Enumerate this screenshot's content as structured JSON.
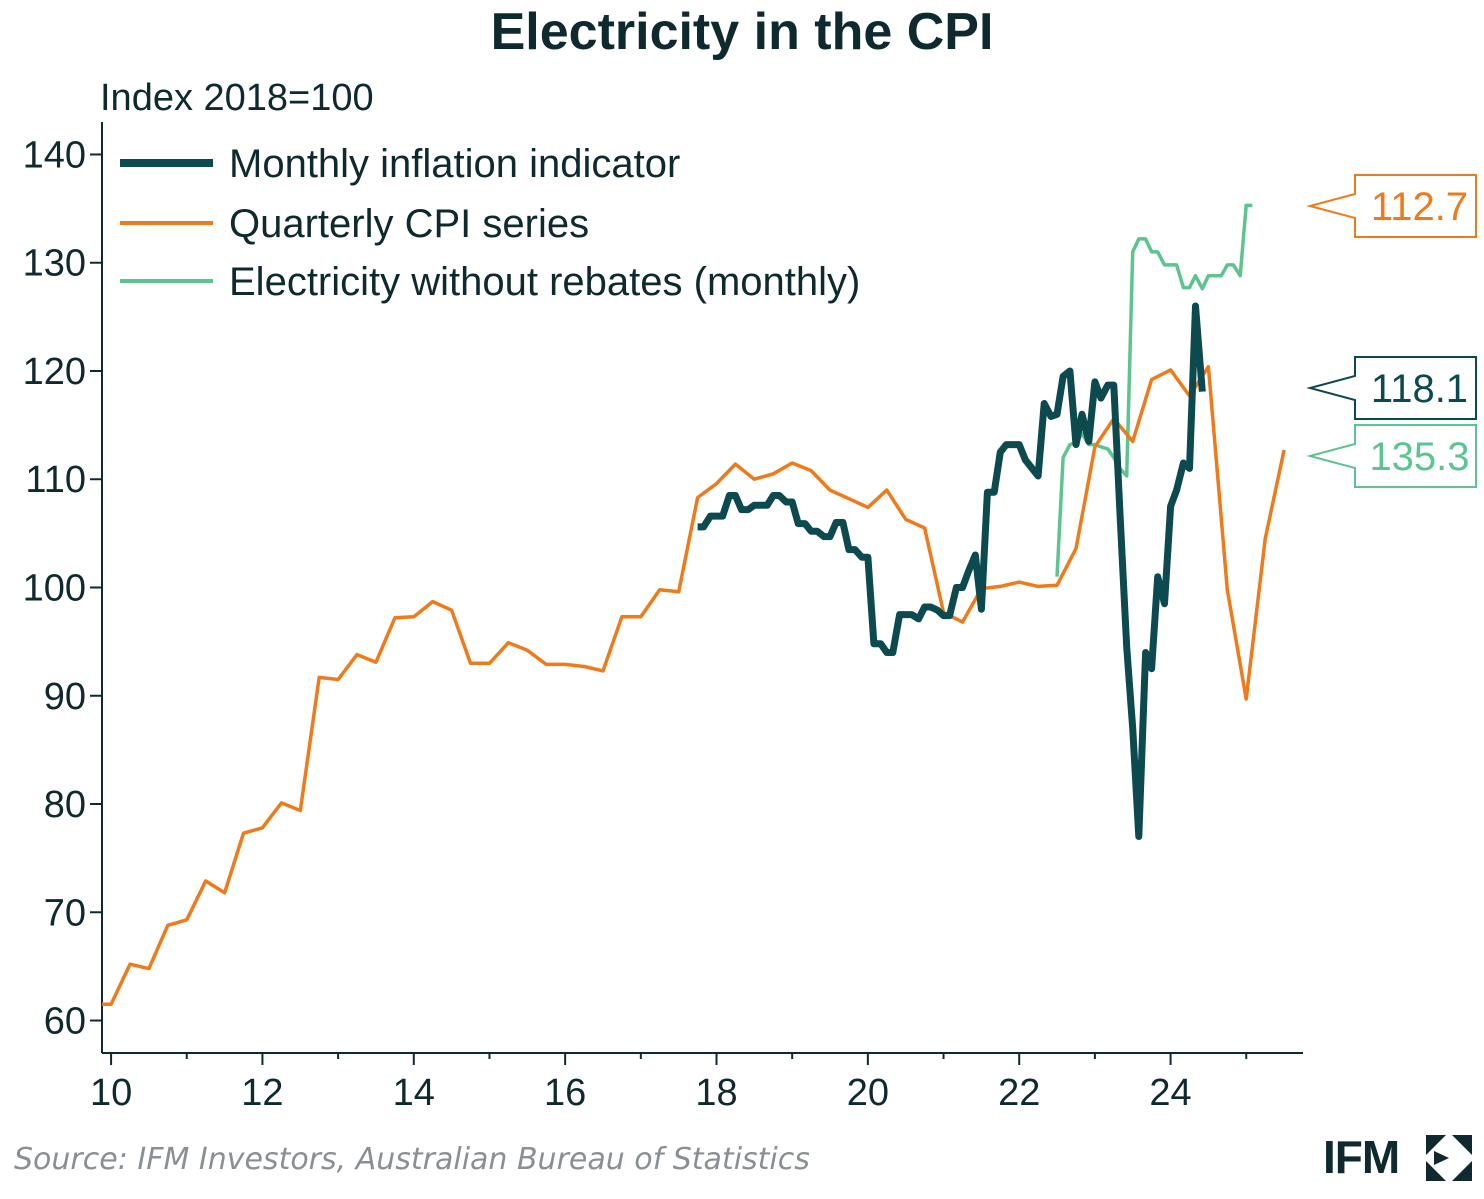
{
  "brand": {
    "name": "IFM",
    "logo_icon": "ifm-logo-mark-icon"
  },
  "source": "Source: IFM Investors, Australian Bureau of Statistics",
  "chart_data": {
    "type": "line",
    "title": "Electricity in the CPI",
    "ylabel": "Index 2018=100",
    "xlabel": "",
    "xlim": [
      2009.88,
      2025.75
    ],
    "ylim": [
      57,
      143
    ],
    "y_ticks": [
      60,
      70,
      80,
      90,
      100,
      110,
      120,
      130,
      140
    ],
    "x_ticks": [
      {
        "value": 2010,
        "label": "10"
      },
      {
        "value": 2012,
        "label": "12"
      },
      {
        "value": 2014,
        "label": "14"
      },
      {
        "value": 2016,
        "label": "16"
      },
      {
        "value": 2018,
        "label": "18"
      },
      {
        "value": 2020,
        "label": "20"
      },
      {
        "value": 2022,
        "label": "22"
      },
      {
        "value": 2024,
        "label": "24"
      }
    ],
    "legend_position": "top-left",
    "series": [
      {
        "name": "Monthly inflation indicator",
        "color": "#0d4a50",
        "end_label": "118.1",
        "points": [
          [
            2017.75,
            105.6
          ],
          [
            2017.83,
            105.6
          ],
          [
            2017.92,
            106.6
          ],
          [
            2018.0,
            106.6
          ],
          [
            2018.08,
            106.6
          ],
          [
            2018.17,
            108.5
          ],
          [
            2018.25,
            108.5
          ],
          [
            2018.33,
            107.2
          ],
          [
            2018.42,
            107.2
          ],
          [
            2018.5,
            107.6
          ],
          [
            2018.58,
            107.6
          ],
          [
            2018.67,
            107.6
          ],
          [
            2018.75,
            108.5
          ],
          [
            2018.83,
            108.5
          ],
          [
            2018.92,
            107.9
          ],
          [
            2019.0,
            107.9
          ],
          [
            2019.08,
            105.9
          ],
          [
            2019.17,
            105.9
          ],
          [
            2019.25,
            105.2
          ],
          [
            2019.33,
            105.2
          ],
          [
            2019.42,
            104.7
          ],
          [
            2019.5,
            104.7
          ],
          [
            2019.58,
            106.0
          ],
          [
            2019.67,
            106.0
          ],
          [
            2019.75,
            103.5
          ],
          [
            2019.83,
            103.5
          ],
          [
            2019.92,
            102.8
          ],
          [
            2020.0,
            102.8
          ],
          [
            2020.08,
            94.8
          ],
          [
            2020.17,
            94.8
          ],
          [
            2020.25,
            94.0
          ],
          [
            2020.33,
            94.0
          ],
          [
            2020.42,
            97.5
          ],
          [
            2020.5,
            97.5
          ],
          [
            2020.58,
            97.5
          ],
          [
            2020.67,
            97.1
          ],
          [
            2020.75,
            98.2
          ],
          [
            2020.83,
            98.2
          ],
          [
            2020.92,
            97.9
          ],
          [
            2021.0,
            97.4
          ],
          [
            2021.08,
            97.4
          ],
          [
            2021.17,
            100.0
          ],
          [
            2021.25,
            100.0
          ],
          [
            2021.33,
            101.5
          ],
          [
            2021.42,
            103.0
          ],
          [
            2021.5,
            98.0
          ],
          [
            2021.58,
            108.8
          ],
          [
            2021.67,
            108.8
          ],
          [
            2021.75,
            112.5
          ],
          [
            2021.83,
            113.2
          ],
          [
            2021.92,
            113.2
          ],
          [
            2022.0,
            113.2
          ],
          [
            2022.08,
            111.8
          ],
          [
            2022.17,
            111.0
          ],
          [
            2022.25,
            110.3
          ],
          [
            2022.33,
            117.0
          ],
          [
            2022.42,
            115.8
          ],
          [
            2022.5,
            116.0
          ],
          [
            2022.58,
            119.5
          ],
          [
            2022.67,
            120.0
          ],
          [
            2022.75,
            113.2
          ],
          [
            2022.83,
            116.0
          ],
          [
            2022.92,
            113.5
          ],
          [
            2023.0,
            119.0
          ],
          [
            2023.08,
            117.5
          ],
          [
            2023.17,
            118.7
          ],
          [
            2023.25,
            118.7
          ],
          [
            2023.33,
            107.0
          ],
          [
            2023.42,
            94.5
          ],
          [
            2023.5,
            87.0
          ],
          [
            2023.58,
            77.0
          ],
          [
            2023.67,
            94.0
          ],
          [
            2023.75,
            92.5
          ],
          [
            2023.83,
            101.0
          ],
          [
            2023.92,
            98.5
          ],
          [
            2024.0,
            107.5
          ],
          [
            2024.08,
            109.0
          ],
          [
            2024.17,
            111.5
          ],
          [
            2024.25,
            111.0
          ],
          [
            2024.33,
            126.0
          ],
          [
            2024.42,
            118.1
          ]
        ]
      },
      {
        "name": "Quarterly CPI series",
        "color": "#f07a1a",
        "end_label": "112.7",
        "points": [
          [
            2009.88,
            61.5
          ],
          [
            2010.0,
            61.5
          ],
          [
            2010.25,
            65.2
          ],
          [
            2010.5,
            64.8
          ],
          [
            2010.75,
            68.8
          ],
          [
            2011.0,
            69.3
          ],
          [
            2011.25,
            72.9
          ],
          [
            2011.5,
            71.8
          ],
          [
            2011.75,
            77.3
          ],
          [
            2012.0,
            77.8
          ],
          [
            2012.25,
            80.1
          ],
          [
            2012.5,
            79.4
          ],
          [
            2012.75,
            91.7
          ],
          [
            2013.0,
            91.5
          ],
          [
            2013.25,
            93.8
          ],
          [
            2013.5,
            93.1
          ],
          [
            2013.75,
            97.2
          ],
          [
            2014.0,
            97.3
          ],
          [
            2014.25,
            98.7
          ],
          [
            2014.5,
            97.9
          ],
          [
            2014.75,
            93.0
          ],
          [
            2015.0,
            93.0
          ],
          [
            2015.25,
            94.9
          ],
          [
            2015.5,
            94.2
          ],
          [
            2015.75,
            92.9
          ],
          [
            2016.0,
            92.9
          ],
          [
            2016.25,
            92.7
          ],
          [
            2016.5,
            92.3
          ],
          [
            2016.75,
            97.3
          ],
          [
            2017.0,
            97.3
          ],
          [
            2017.25,
            99.8
          ],
          [
            2017.5,
            99.6
          ],
          [
            2017.75,
            108.3
          ],
          [
            2018.0,
            109.6
          ],
          [
            2018.25,
            111.4
          ],
          [
            2018.5,
            110.0
          ],
          [
            2018.75,
            110.5
          ],
          [
            2019.0,
            111.5
          ],
          [
            2019.25,
            110.8
          ],
          [
            2019.5,
            109.0
          ],
          [
            2019.75,
            108.2
          ],
          [
            2020.0,
            107.4
          ],
          [
            2020.25,
            109.0
          ],
          [
            2020.5,
            106.3
          ],
          [
            2020.75,
            105.5
          ],
          [
            2021.0,
            97.7
          ],
          [
            2021.25,
            96.8
          ],
          [
            2021.5,
            99.9
          ],
          [
            2021.75,
            100.1
          ],
          [
            2022.0,
            100.5
          ],
          [
            2022.25,
            100.1
          ],
          [
            2022.5,
            100.2
          ],
          [
            2022.75,
            103.6
          ],
          [
            2023.0,
            113.0
          ],
          [
            2023.25,
            115.6
          ],
          [
            2023.5,
            113.5
          ],
          [
            2023.75,
            119.2
          ],
          [
            2024.0,
            120.1
          ],
          [
            2024.25,
            117.7
          ],
          [
            2024.5,
            120.4
          ],
          [
            2024.75,
            99.8
          ],
          [
            2025.0,
            89.7
          ],
          [
            2025.25,
            104.5
          ],
          [
            2025.5,
            112.7
          ]
        ]
      },
      {
        "name": "Electricity without rebates (monthly)",
        "color": "#5bc48f",
        "end_label": "135.3",
        "points": [
          [
            2022.5,
            101.0
          ],
          [
            2022.58,
            112.0
          ],
          [
            2022.67,
            113.2
          ],
          [
            2022.75,
            113.4
          ],
          [
            2022.83,
            114.2
          ],
          [
            2022.92,
            113.2
          ],
          [
            2023.0,
            113.2
          ],
          [
            2023.08,
            113.0
          ],
          [
            2023.17,
            112.8
          ],
          [
            2023.25,
            112.0
          ],
          [
            2023.33,
            111.0
          ],
          [
            2023.42,
            110.3
          ],
          [
            2023.5,
            131.0
          ],
          [
            2023.58,
            132.2
          ],
          [
            2023.67,
            132.2
          ],
          [
            2023.75,
            131.0
          ],
          [
            2023.83,
            131.0
          ],
          [
            2023.92,
            129.8
          ],
          [
            2024.0,
            129.8
          ],
          [
            2024.08,
            129.8
          ],
          [
            2024.17,
            127.7
          ],
          [
            2024.25,
            127.7
          ],
          [
            2024.33,
            128.8
          ],
          [
            2024.42,
            127.6
          ],
          [
            2024.5,
            128.8
          ],
          [
            2024.58,
            128.8
          ],
          [
            2024.67,
            128.8
          ],
          [
            2024.75,
            129.8
          ],
          [
            2024.83,
            129.8
          ],
          [
            2024.92,
            128.8
          ],
          [
            2025.0,
            135.3
          ],
          [
            2025.08,
            135.3
          ]
        ]
      }
    ]
  }
}
